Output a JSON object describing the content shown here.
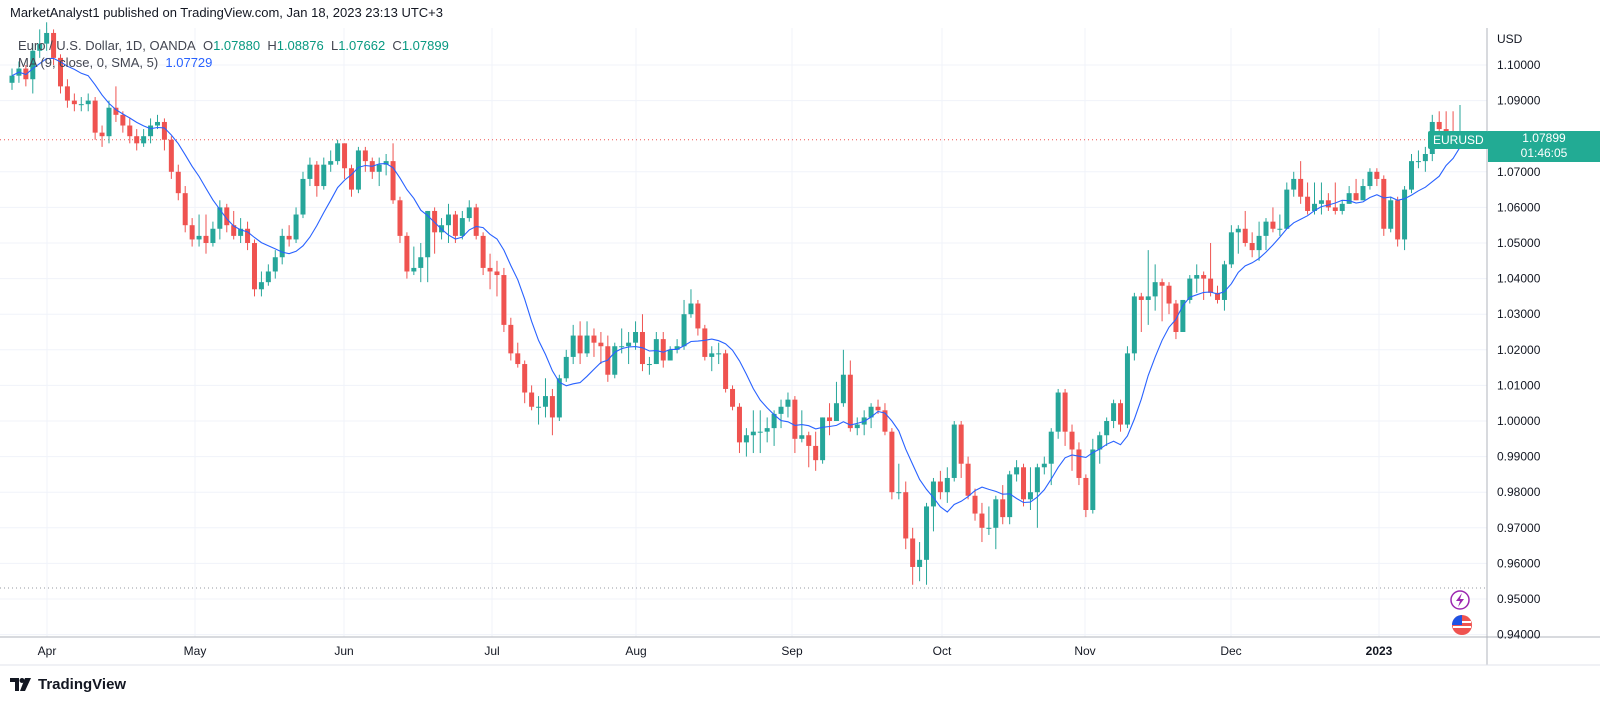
{
  "header": {
    "published": "MarketAnalyst1 published on TradingView.com, Jan 18, 2023 23:13 UTC+3"
  },
  "legend": {
    "symbol": "Euro / U.S. Dollar, 1D, OANDA",
    "o_label": "O",
    "o": "1.07880",
    "h_label": "H",
    "h": "1.08876",
    "l_label": "L",
    "l": "1.07662",
    "c_label": "C",
    "c": "1.07899",
    "ma_label": "MA (9, close, 0, SMA, 5)",
    "ma_value": "1.07729"
  },
  "price_tag": {
    "symbol": "EURUSD",
    "price": "1.07899",
    "countdown": "01:46:05"
  },
  "footer": {
    "brand": "TradingView"
  },
  "icons": {
    "lightning": "lightning-icon",
    "flag": "us-eu-flag-icon",
    "logo": "tradingview-logo-icon"
  },
  "colors": {
    "up": "#26a69a",
    "down": "#ef5350",
    "ma": "#2962ff",
    "last_price": "#22ab94"
  },
  "chart_data": {
    "type": "candlestick",
    "currency": "USD",
    "ylim": [
      0.94,
      1.11
    ],
    "grid": true,
    "y_ticks": [
      "1.10000",
      "1.09000",
      "1.07000",
      "1.06000",
      "1.05000",
      "1.04000",
      "1.03000",
      "1.02000",
      "1.01000",
      "1.00000",
      "0.99000",
      "0.98000",
      "0.97000",
      "0.96000",
      "0.95000",
      "0.94000"
    ],
    "x_ticks": [
      "Apr",
      "May",
      "Jun",
      "Jul",
      "Aug",
      "Sep",
      "Oct",
      "Nov",
      "Dec",
      "2023"
    ],
    "indicator": {
      "name": "MA (9, close, 0, SMA, 5)",
      "type": "SMA",
      "length": 9
    },
    "ohlc": [
      [
        1.095,
        1.099,
        1.093,
        1.097
      ],
      [
        1.097,
        1.101,
        1.095,
        1.099
      ],
      [
        1.099,
        1.1,
        1.094,
        1.096
      ],
      [
        1.096,
        1.106,
        1.092,
        1.104
      ],
      [
        1.104,
        1.11,
        1.102,
        1.106
      ],
      [
        1.106,
        1.112,
        1.104,
        1.109
      ],
      [
        1.109,
        1.11,
        1.1,
        1.102
      ],
      [
        1.102,
        1.103,
        1.092,
        1.094
      ],
      [
        1.094,
        1.096,
        1.088,
        1.09
      ],
      [
        1.09,
        1.092,
        1.087,
        1.089
      ],
      [
        1.089,
        1.091,
        1.087,
        1.089
      ],
      [
        1.089,
        1.092,
        1.087,
        1.09
      ],
      [
        1.09,
        1.091,
        1.079,
        1.081
      ],
      [
        1.081,
        1.083,
        1.077,
        1.08
      ],
      [
        1.08,
        1.09,
        1.078,
        1.088
      ],
      [
        1.088,
        1.094,
        1.084,
        1.086
      ],
      [
        1.086,
        1.087,
        1.081,
        1.083
      ],
      [
        1.083,
        1.085,
        1.078,
        1.08
      ],
      [
        1.08,
        1.082,
        1.076,
        1.078
      ],
      [
        1.078,
        1.082,
        1.077,
        1.08
      ],
      [
        1.08,
        1.085,
        1.078,
        1.083
      ],
      [
        1.083,
        1.086,
        1.082,
        1.084
      ],
      [
        1.084,
        1.085,
        1.076,
        1.079
      ],
      [
        1.079,
        1.08,
        1.068,
        1.07
      ],
      [
        1.07,
        1.072,
        1.062,
        1.064
      ],
      [
        1.064,
        1.066,
        1.053,
        1.055
      ],
      [
        1.055,
        1.057,
        1.049,
        1.051
      ],
      [
        1.051,
        1.058,
        1.049,
        1.052
      ],
      [
        1.052,
        1.058,
        1.047,
        1.05
      ],
      [
        1.05,
        1.056,
        1.049,
        1.054
      ],
      [
        1.054,
        1.062,
        1.051,
        1.06
      ],
      [
        1.06,
        1.061,
        1.053,
        1.055
      ],
      [
        1.055,
        1.059,
        1.051,
        1.052
      ],
      [
        1.052,
        1.057,
        1.05,
        1.054
      ],
      [
        1.054,
        1.056,
        1.048,
        1.05
      ],
      [
        1.05,
        1.051,
        1.035,
        1.037
      ],
      [
        1.037,
        1.042,
        1.035,
        1.039
      ],
      [
        1.039,
        1.044,
        1.038,
        1.042
      ],
      [
        1.042,
        1.048,
        1.04,
        1.046
      ],
      [
        1.046,
        1.054,
        1.044,
        1.052
      ],
      [
        1.052,
        1.055,
        1.049,
        1.051
      ],
      [
        1.051,
        1.06,
        1.05,
        1.058
      ],
      [
        1.058,
        1.07,
        1.057,
        1.068
      ],
      [
        1.068,
        1.074,
        1.066,
        1.072
      ],
      [
        1.072,
        1.073,
        1.063,
        1.066
      ],
      [
        1.066,
        1.074,
        1.065,
        1.072
      ],
      [
        1.072,
        1.076,
        1.07,
        1.073
      ],
      [
        1.073,
        1.079,
        1.072,
        1.078
      ],
      [
        1.078,
        1.078,
        1.068,
        1.071
      ],
      [
        1.071,
        1.072,
        1.063,
        1.065
      ],
      [
        1.065,
        1.077,
        1.064,
        1.076
      ],
      [
        1.076,
        1.077,
        1.07,
        1.073
      ],
      [
        1.073,
        1.074,
        1.068,
        1.07
      ],
      [
        1.07,
        1.074,
        1.066,
        1.072
      ],
      [
        1.072,
        1.075,
        1.069,
        1.073
      ],
      [
        1.073,
        1.078,
        1.061,
        1.062
      ],
      [
        1.062,
        1.063,
        1.05,
        1.052
      ],
      [
        1.052,
        1.053,
        1.04,
        1.042
      ],
      [
        1.042,
        1.049,
        1.041,
        1.043
      ],
      [
        1.043,
        1.05,
        1.039,
        1.046
      ],
      [
        1.046,
        1.059,
        1.039,
        1.059
      ],
      [
        1.059,
        1.06,
        1.047,
        1.053
      ],
      [
        1.053,
        1.057,
        1.051,
        1.055
      ],
      [
        1.055,
        1.061,
        1.05,
        1.058
      ],
      [
        1.058,
        1.059,
        1.05,
        1.052
      ],
      [
        1.052,
        1.059,
        1.051,
        1.057
      ],
      [
        1.057,
        1.062,
        1.056,
        1.06
      ],
      [
        1.06,
        1.061,
        1.051,
        1.052
      ],
      [
        1.052,
        1.053,
        1.041,
        1.043
      ],
      [
        1.043,
        1.047,
        1.037,
        1.042
      ],
      [
        1.042,
        1.045,
        1.035,
        1.041
      ],
      [
        1.041,
        1.043,
        1.025,
        1.027
      ],
      [
        1.027,
        1.029,
        1.017,
        1.019
      ],
      [
        1.019,
        1.022,
        1.015,
        1.016
      ],
      [
        1.016,
        1.017,
        1.005,
        1.008
      ],
      [
        1.008,
        1.01,
        1.003,
        1.004
      ],
      [
        1.004,
        1.007,
        0.999,
        1.004
      ],
      [
        1.004,
        1.012,
        1.001,
        1.007
      ],
      [
        1.007,
        1.009,
        0.996,
        1.001
      ],
      [
        1.001,
        1.013,
        1.0,
        1.012
      ],
      [
        1.012,
        1.02,
        1.011,
        1.018
      ],
      [
        1.018,
        1.027,
        1.016,
        1.024
      ],
      [
        1.024,
        1.028,
        1.016,
        1.019
      ],
      [
        1.019,
        1.028,
        1.018,
        1.024
      ],
      [
        1.024,
        1.026,
        1.018,
        1.022
      ],
      [
        1.022,
        1.025,
        1.016,
        1.021
      ],
      [
        1.021,
        1.024,
        1.011,
        1.013
      ],
      [
        1.013,
        1.022,
        1.012,
        1.021
      ],
      [
        1.021,
        1.026,
        1.019,
        1.021
      ],
      [
        1.021,
        1.025,
        1.016,
        1.022
      ],
      [
        1.022,
        1.028,
        1.02,
        1.025
      ],
      [
        1.025,
        1.03,
        1.014,
        1.016
      ],
      [
        1.016,
        1.018,
        1.013,
        1.016
      ],
      [
        1.016,
        1.025,
        1.016,
        1.023
      ],
      [
        1.023,
        1.025,
        1.015,
        1.017
      ],
      [
        1.017,
        1.021,
        1.017,
        1.02
      ],
      [
        1.02,
        1.023,
        1.019,
        1.021
      ],
      [
        1.021,
        1.034,
        1.02,
        1.03
      ],
      [
        1.03,
        1.037,
        1.029,
        1.033
      ],
      [
        1.033,
        1.034,
        1.024,
        1.026
      ],
      [
        1.026,
        1.027,
        1.017,
        1.018
      ],
      [
        1.018,
        1.021,
        1.014,
        1.019
      ],
      [
        1.019,
        1.022,
        1.016,
        1.019
      ],
      [
        1.019,
        1.02,
        1.008,
        1.009
      ],
      [
        1.009,
        1.01,
        1.003,
        1.004
      ],
      [
        1.004,
        1.005,
        0.991,
        0.994
      ],
      [
        0.994,
        0.998,
        0.99,
        0.996
      ],
      [
        0.996,
        1.003,
        0.991,
        0.997
      ],
      [
        0.997,
        1.003,
        0.991,
        0.997
      ],
      [
        0.997,
        1.001,
        0.994,
        0.998
      ],
      [
        0.998,
        1.003,
        0.993,
        1.002
      ],
      [
        1.002,
        1.006,
        0.998,
        1.004
      ],
      [
        1.004,
        1.008,
        1.001,
        1.006
      ],
      [
        1.006,
        1.007,
        0.991,
        0.995
      ],
      [
        0.995,
        1.003,
        0.994,
        0.996
      ],
      [
        0.996,
        0.997,
        0.987,
        0.993
      ],
      [
        0.993,
        0.997,
        0.986,
        0.989
      ],
      [
        0.989,
        1.001,
        0.988,
        1.001
      ],
      [
        1.001,
        1.005,
        0.996,
        1.0
      ],
      [
        1.0,
        1.011,
        1.0,
        1.005
      ],
      [
        1.005,
        1.02,
        1.004,
        1.013
      ],
      [
        1.013,
        1.017,
        0.997,
        0.998
      ],
      [
        0.998,
        1.001,
        0.996,
        0.999
      ],
      [
        0.999,
        1.003,
        0.996,
        1.001
      ],
      [
        1.001,
        1.005,
        0.998,
        1.004
      ],
      [
        1.004,
        1.006,
        1.002,
        1.003
      ],
      [
        1.003,
        1.005,
        0.996,
        0.997
      ],
      [
        0.997,
        0.998,
        0.978,
        0.98
      ],
      [
        0.98,
        0.988,
        0.978,
        0.98
      ],
      [
        0.98,
        0.983,
        0.964,
        0.967
      ],
      [
        0.967,
        0.97,
        0.954,
        0.959
      ],
      [
        0.959,
        0.966,
        0.955,
        0.961
      ],
      [
        0.961,
        0.977,
        0.954,
        0.976
      ],
      [
        0.976,
        0.984,
        0.969,
        0.983
      ],
      [
        0.983,
        0.986,
        0.978,
        0.98
      ],
      [
        0.98,
        0.987,
        0.977,
        0.984
      ],
      [
        0.984,
        1.0,
        0.983,
        0.999
      ],
      [
        0.999,
        1.0,
        0.984,
        0.988
      ],
      [
        0.988,
        0.99,
        0.978,
        0.979
      ],
      [
        0.979,
        0.981,
        0.972,
        0.974
      ],
      [
        0.974,
        0.977,
        0.966,
        0.97
      ],
      [
        0.97,
        0.976,
        0.968,
        0.97
      ],
      [
        0.97,
        0.979,
        0.964,
        0.978
      ],
      [
        0.978,
        0.982,
        0.971,
        0.973
      ],
      [
        0.973,
        0.986,
        0.971,
        0.985
      ],
      [
        0.985,
        0.989,
        0.983,
        0.987
      ],
      [
        0.987,
        0.988,
        0.976,
        0.978
      ],
      [
        0.978,
        0.987,
        0.975,
        0.98
      ],
      [
        0.98,
        0.988,
        0.97,
        0.987
      ],
      [
        0.987,
        0.99,
        0.985,
        0.988
      ],
      [
        0.988,
        0.998,
        0.982,
        0.997
      ],
      [
        0.997,
        1.009,
        0.995,
        1.008
      ],
      [
        1.008,
        1.009,
        0.993,
        0.997
      ],
      [
        0.997,
        0.999,
        0.986,
        0.992
      ],
      [
        0.992,
        0.994,
        0.982,
        0.984
      ],
      [
        0.984,
        0.985,
        0.973,
        0.975
      ],
      [
        0.975,
        0.995,
        0.974,
        0.992
      ],
      [
        0.992,
        0.997,
        0.988,
        0.996
      ],
      [
        0.996,
        1.001,
        0.993,
        1.0
      ],
      [
        1.0,
        1.006,
        0.998,
        1.005
      ],
      [
        1.005,
        1.006,
        0.997,
        0.999
      ],
      [
        0.999,
        1.021,
        0.998,
        1.019
      ],
      [
        1.019,
        1.036,
        1.017,
        1.035
      ],
      [
        1.035,
        1.036,
        1.025,
        1.034
      ],
      [
        1.034,
        1.048,
        1.027,
        1.035
      ],
      [
        1.035,
        1.044,
        1.031,
        1.039
      ],
      [
        1.039,
        1.04,
        1.028,
        1.038
      ],
      [
        1.038,
        1.039,
        1.03,
        1.033
      ],
      [
        1.033,
        1.034,
        1.023,
        1.025
      ],
      [
        1.025,
        1.034,
        1.025,
        1.034
      ],
      [
        1.034,
        1.041,
        1.033,
        1.04
      ],
      [
        1.04,
        1.044,
        1.036,
        1.041
      ],
      [
        1.041,
        1.042,
        1.034,
        1.04
      ],
      [
        1.04,
        1.05,
        1.035,
        1.036
      ],
      [
        1.036,
        1.038,
        1.033,
        1.034
      ],
      [
        1.034,
        1.045,
        1.031,
        1.044
      ],
      [
        1.044,
        1.055,
        1.043,
        1.053
      ],
      [
        1.053,
        1.055,
        1.047,
        1.054
      ],
      [
        1.054,
        1.059,
        1.049,
        1.05
      ],
      [
        1.05,
        1.053,
        1.046,
        1.048
      ],
      [
        1.048,
        1.056,
        1.045,
        1.052
      ],
      [
        1.052,
        1.057,
        1.048,
        1.056
      ],
      [
        1.056,
        1.06,
        1.053,
        1.054
      ],
      [
        1.054,
        1.058,
        1.052,
        1.054
      ],
      [
        1.054,
        1.067,
        1.054,
        1.065
      ],
      [
        1.065,
        1.07,
        1.063,
        1.068
      ],
      [
        1.068,
        1.073,
        1.061,
        1.063
      ],
      [
        1.063,
        1.067,
        1.058,
        1.059
      ],
      [
        1.059,
        1.067,
        1.058,
        1.061
      ],
      [
        1.061,
        1.067,
        1.058,
        1.062
      ],
      [
        1.062,
        1.064,
        1.059,
        1.06
      ],
      [
        1.06,
        1.067,
        1.058,
        1.059
      ],
      [
        1.059,
        1.062,
        1.058,
        1.061
      ],
      [
        1.061,
        1.066,
        1.061,
        1.064
      ],
      [
        1.064,
        1.068,
        1.062,
        1.062
      ],
      [
        1.062,
        1.068,
        1.062,
        1.066
      ],
      [
        1.066,
        1.071,
        1.065,
        1.07
      ],
      [
        1.07,
        1.071,
        1.066,
        1.068
      ],
      [
        1.068,
        1.069,
        1.052,
        1.054
      ],
      [
        1.054,
        1.063,
        1.053,
        1.062
      ],
      [
        1.062,
        1.063,
        1.049,
        1.051
      ],
      [
        1.051,
        1.066,
        1.048,
        1.065
      ],
      [
        1.065,
        1.075,
        1.064,
        1.073
      ],
      [
        1.073,
        1.076,
        1.071,
        1.073
      ],
      [
        1.073,
        1.077,
        1.07,
        1.075
      ],
      [
        1.075,
        1.086,
        1.073,
        1.084
      ],
      [
        1.084,
        1.087,
        1.08,
        1.082
      ],
      [
        1.082,
        1.087,
        1.08,
        1.081
      ],
      [
        1.081,
        1.087,
        1.079,
        1.08
      ],
      [
        1.0788,
        1.08876,
        1.07662,
        1.07899
      ]
    ]
  }
}
